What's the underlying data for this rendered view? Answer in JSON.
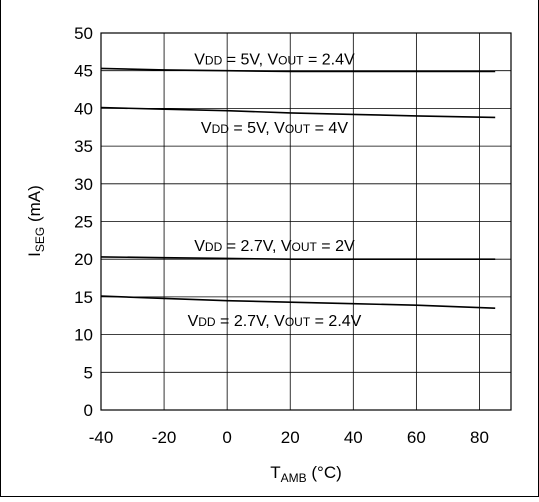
{
  "chart_data": {
    "type": "line",
    "title": "",
    "xlabel": {
      "main": "T",
      "sub": "AMB",
      "unit": " (°C)"
    },
    "ylabel": {
      "main": "I",
      "sub": "SEG",
      "unit": " (mA)"
    },
    "xlim": [
      -40,
      90
    ],
    "ylim": [
      0,
      50
    ],
    "xticks": [
      -40,
      -20,
      0,
      20,
      40,
      60,
      80
    ],
    "yticks": [
      0,
      5,
      10,
      15,
      20,
      25,
      30,
      35,
      40,
      45,
      50
    ],
    "grid": true,
    "series": [
      {
        "name": "VDD = 5V, VOUT = 2.4V",
        "label_parts": [
          "V",
          "DD",
          " = 5V, V",
          "OUT",
          " = 2.4V"
        ],
        "x": [
          -40,
          -20,
          0,
          20,
          40,
          60,
          85
        ],
        "y": [
          45.3,
          45.1,
          45.0,
          44.9,
          44.9,
          44.9,
          44.9
        ]
      },
      {
        "name": "VDD = 5V, VOUT = 4V",
        "label_parts": [
          "V",
          "DD",
          " = 5V, V",
          "OUT",
          " = 4V"
        ],
        "x": [
          -40,
          -20,
          0,
          20,
          40,
          60,
          85
        ],
        "y": [
          40.1,
          39.9,
          39.7,
          39.4,
          39.2,
          39.0,
          38.8
        ]
      },
      {
        "name": "VDD = 2.7V, VOUT = 2V",
        "label_parts": [
          "V",
          "DD",
          " = 2.7V, V",
          "OUT",
          " = 2V"
        ],
        "x": [
          -40,
          -20,
          0,
          20,
          40,
          60,
          85
        ],
        "y": [
          20.3,
          20.2,
          20.1,
          20.0,
          20.0,
          20.0,
          20.0
        ]
      },
      {
        "name": "VDD = 2.7V, VOUT = 2.4V",
        "label_parts": [
          "V",
          "DD",
          " = 2.7V, V",
          "OUT",
          " = 2.4V"
        ],
        "x": [
          -40,
          -20,
          0,
          20,
          40,
          60,
          85
        ],
        "y": [
          15.1,
          14.8,
          14.5,
          14.3,
          14.1,
          13.9,
          13.5
        ]
      }
    ]
  }
}
